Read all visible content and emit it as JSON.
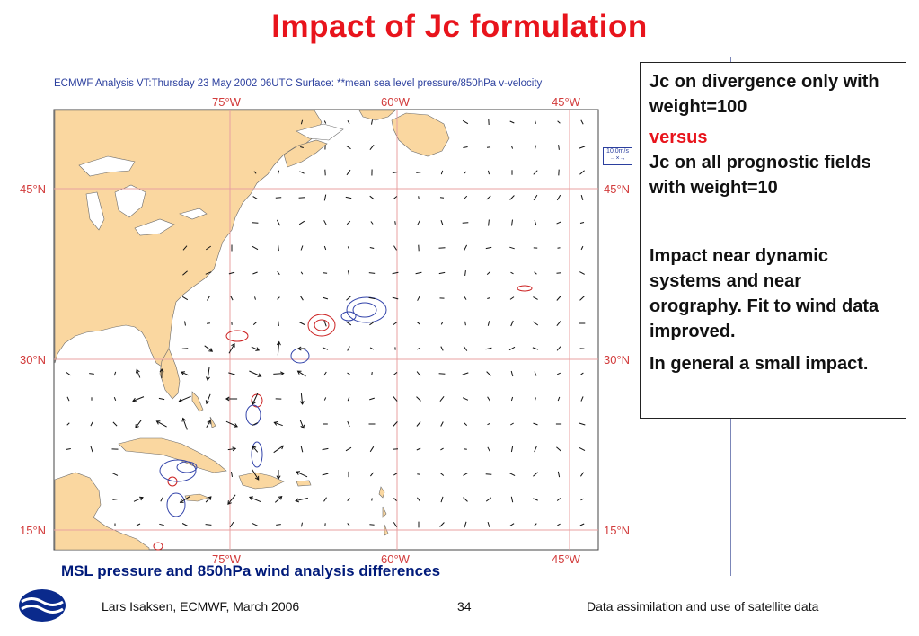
{
  "slide": {
    "title": "Impact of Jc formulation"
  },
  "figure": {
    "header": "ECMWF  Analysis VT:Thursday 23 May 2002 06UTC Surface: **mean sea level pressure/850hPa  v-velocity",
    "legend": {
      "value": "10.0m/s",
      "symbol": "→×→"
    },
    "lon_labels": [
      "75°W",
      "60°W",
      "45°W"
    ],
    "lat_labels": [
      "45°N",
      "30°N",
      "15°N"
    ],
    "colors": {
      "land": "#fad7a0",
      "grid": "#e8a0a0",
      "positive_contour": "#cc2222",
      "negative_contour": "#3344aa",
      "vectors": "#111111"
    },
    "caption": "MSL pressure and 850hPa wind analysis differences"
  },
  "textbox": {
    "line1": "Jc on divergence only with weight=100",
    "versus": "versus",
    "line2": "Jc on all prognostic fields with weight=10",
    "para1": "Impact near dynamic systems and near orography. Fit to wind data improved.",
    "para2": "In general a small impact."
  },
  "footer": {
    "author": "Lars Isaksen, ECMWF, March 2006",
    "page": "34",
    "topic": "Data assimilation and use of satellite data",
    "logo": "ecmwf-logo"
  }
}
